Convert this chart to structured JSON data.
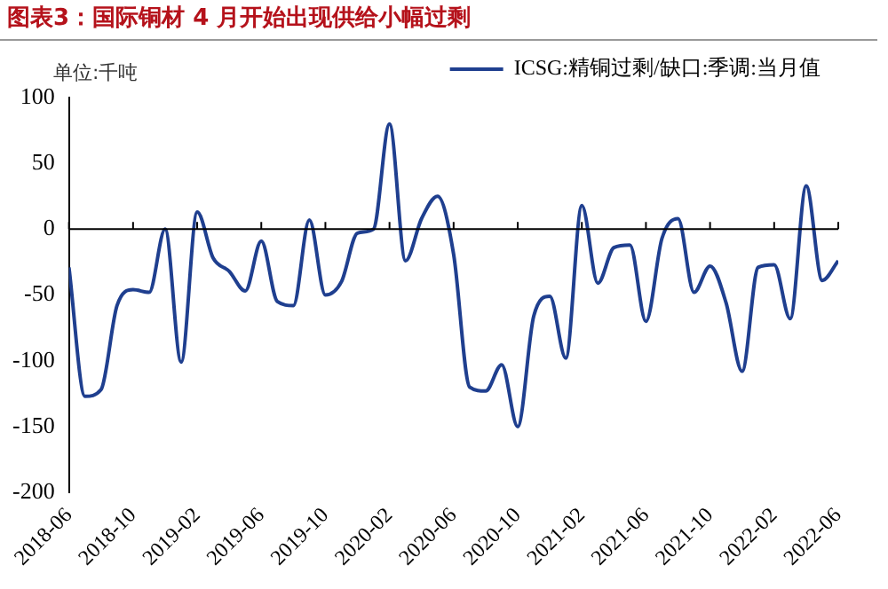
{
  "chart_data": {
    "type": "line",
    "title": "图表3：国际铜材 4 月开始出现供给小幅过剩",
    "ylabel": "单位:千吨",
    "x": [
      "2018-06",
      "2018-07",
      "2018-08",
      "2018-09",
      "2018-10",
      "2018-11",
      "2018-12",
      "2019-01",
      "2019-02",
      "2019-03",
      "2019-04",
      "2019-05",
      "2019-06",
      "2019-07",
      "2019-08",
      "2019-09",
      "2019-10",
      "2019-11",
      "2019-12",
      "2020-01",
      "2020-02",
      "2020-03",
      "2020-04",
      "2020-05",
      "2020-06",
      "2020-07",
      "2020-08",
      "2020-09",
      "2020-10",
      "2020-11",
      "2020-12",
      "2021-01",
      "2021-02",
      "2021-03",
      "2021-04",
      "2021-05",
      "2021-06",
      "2021-07",
      "2021-08",
      "2021-09",
      "2021-10",
      "2021-11",
      "2021-12",
      "2022-01",
      "2022-02",
      "2022-03",
      "2022-04",
      "2022-05",
      "2022-06"
    ],
    "series": [
      {
        "name": "ICSG:精铜过剩/缺口:季调:当月值",
        "color": "#1f3f8f",
        "values": [
          -29,
          -127,
          -122,
          -58,
          -46,
          -48,
          0,
          -101,
          13,
          -22,
          -32,
          -47,
          -9,
          -55,
          -58,
          7,
          -50,
          -40,
          -3,
          0,
          80,
          -24,
          8,
          25,
          -19,
          -120,
          -123,
          -103,
          -150,
          -66,
          -51,
          -98,
          18,
          -41,
          -14,
          -12,
          -70,
          -7,
          8,
          -48,
          -28,
          -56,
          -108,
          -29,
          -27,
          -68,
          33,
          -39,
          -24
        ]
      }
    ],
    "xlim": [
      "2018-06",
      "2022-06"
    ],
    "xticks": [
      "2018-06",
      "2018-10",
      "2019-02",
      "2019-06",
      "2019-10",
      "2020-02",
      "2020-06",
      "2020-10",
      "2021-02",
      "2021-06",
      "2021-10",
      "2022-02",
      "2022-06"
    ],
    "ylim": [
      -200,
      100
    ],
    "yticks": [
      -200,
      -150,
      -100,
      -50,
      0,
      50,
      100
    ],
    "ref_lines": [
      {
        "axis": "y",
        "value": 0,
        "color": "#000000"
      }
    ],
    "grid": false,
    "legend": "top",
    "marker": "none",
    "line_style": "solid"
  }
}
